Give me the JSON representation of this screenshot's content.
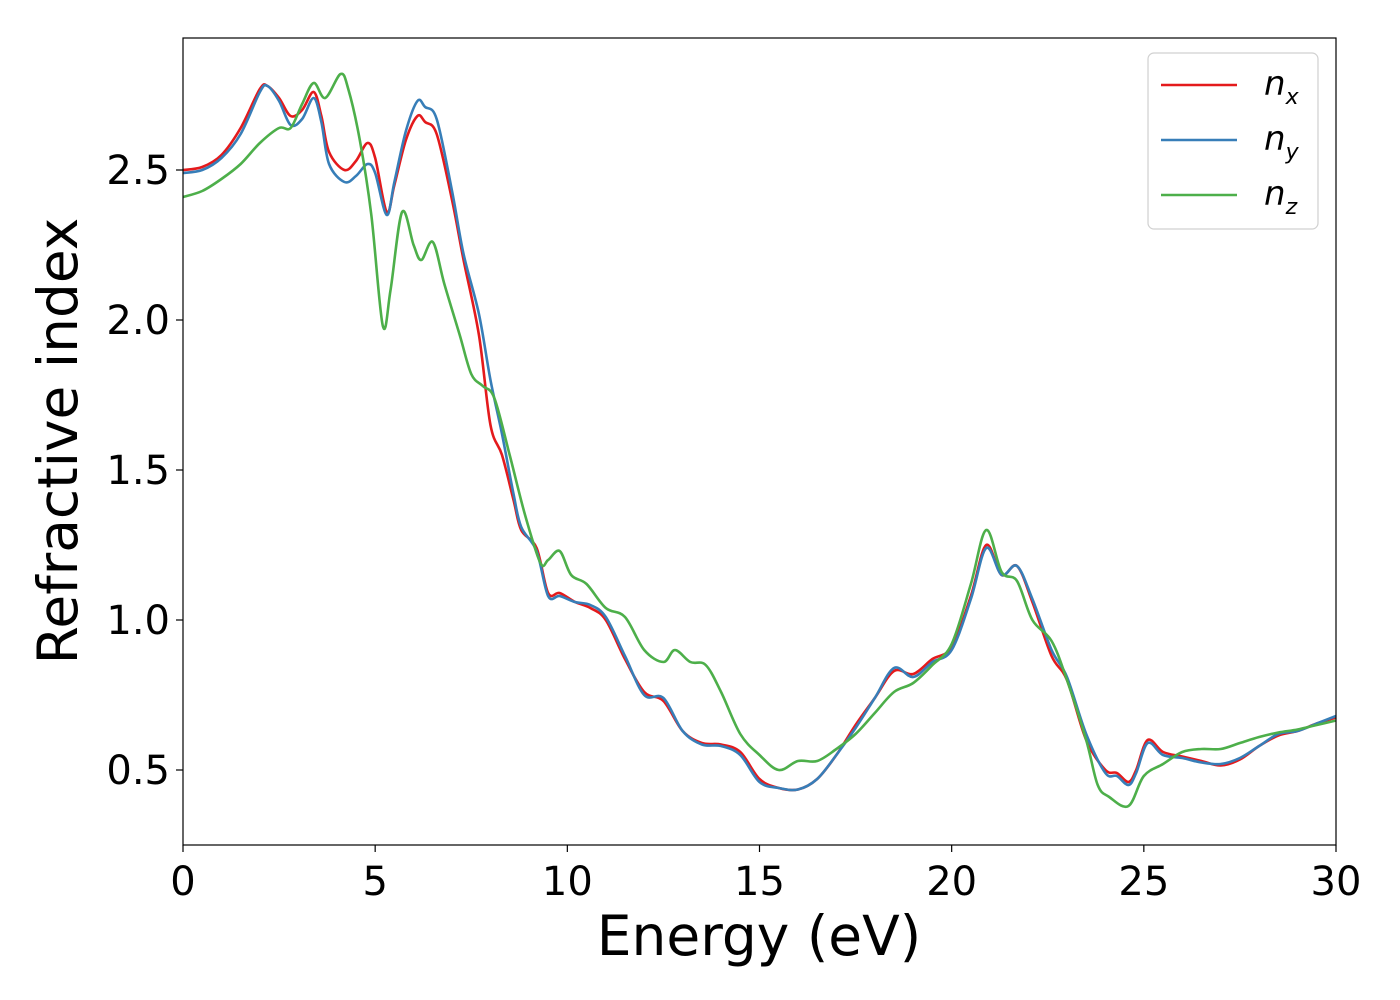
{
  "chart_data": {
    "type": "line",
    "title": "",
    "xlabel": "Energy (eV)",
    "ylabel": "Refractive index",
    "xlim": [
      0,
      30
    ],
    "ylim": [
      0.25,
      2.94
    ],
    "xticks": [
      0,
      5,
      10,
      15,
      20,
      25,
      30
    ],
    "xtick_labels": [
      "0",
      "5",
      "10",
      "15",
      "20",
      "25",
      "30"
    ],
    "yticks": [
      0.5,
      1.0,
      1.5,
      2.0,
      2.5
    ],
    "ytick_labels": [
      "0.5",
      "1.0",
      "1.5",
      "2.0",
      "2.5"
    ],
    "grid": false,
    "legend_position": "top-right",
    "series": [
      {
        "name": "n_x",
        "label_main": "n",
        "label_sub": "x",
        "color": "#e41a1c",
        "points": [
          [
            0,
            2.5
          ],
          [
            0.5,
            2.51
          ],
          [
            1,
            2.55
          ],
          [
            1.5,
            2.64
          ],
          [
            2,
            2.77
          ],
          [
            2.2,
            2.78
          ],
          [
            2.5,
            2.74
          ],
          [
            2.8,
            2.68
          ],
          [
            3.1,
            2.7
          ],
          [
            3.4,
            2.76
          ],
          [
            3.6,
            2.68
          ],
          [
            3.8,
            2.56
          ],
          [
            4.2,
            2.5
          ],
          [
            4.5,
            2.53
          ],
          [
            4.8,
            2.59
          ],
          [
            5,
            2.54
          ],
          [
            5.3,
            2.36
          ],
          [
            5.5,
            2.45
          ],
          [
            5.8,
            2.6
          ],
          [
            6.1,
            2.68
          ],
          [
            6.3,
            2.66
          ],
          [
            6.6,
            2.62
          ],
          [
            7,
            2.4
          ],
          [
            7.3,
            2.2
          ],
          [
            7.7,
            1.95
          ],
          [
            8,
            1.65
          ],
          [
            8.3,
            1.55
          ],
          [
            8.6,
            1.4
          ],
          [
            8.8,
            1.3
          ],
          [
            9.2,
            1.24
          ],
          [
            9.5,
            1.09
          ],
          [
            9.8,
            1.09
          ],
          [
            10.2,
            1.06
          ],
          [
            10.6,
            1.04
          ],
          [
            11,
            1.0
          ],
          [
            11.5,
            0.87
          ],
          [
            12,
            0.76
          ],
          [
            12.5,
            0.73
          ],
          [
            13,
            0.63
          ],
          [
            13.5,
            0.59
          ],
          [
            14,
            0.585
          ],
          [
            14.5,
            0.56
          ],
          [
            15,
            0.47
          ],
          [
            15.5,
            0.44
          ],
          [
            16,
            0.435
          ],
          [
            16.5,
            0.47
          ],
          [
            17,
            0.55
          ],
          [
            17.5,
            0.65
          ],
          [
            18,
            0.74
          ],
          [
            18.5,
            0.83
          ],
          [
            19,
            0.82
          ],
          [
            19.5,
            0.87
          ],
          [
            20,
            0.91
          ],
          [
            20.5,
            1.08
          ],
          [
            20.9,
            1.25
          ],
          [
            21.3,
            1.15
          ],
          [
            21.7,
            1.18
          ],
          [
            22.1,
            1.06
          ],
          [
            22.6,
            0.88
          ],
          [
            23,
            0.8
          ],
          [
            23.5,
            0.6
          ],
          [
            24,
            0.5
          ],
          [
            24.3,
            0.49
          ],
          [
            24.6,
            0.46
          ],
          [
            24.8,
            0.5
          ],
          [
            25.1,
            0.6
          ],
          [
            25.5,
            0.56
          ],
          [
            26,
            0.545
          ],
          [
            26.5,
            0.53
          ],
          [
            27,
            0.515
          ],
          [
            27.5,
            0.535
          ],
          [
            28,
            0.58
          ],
          [
            28.5,
            0.615
          ],
          [
            29,
            0.63
          ],
          [
            29.5,
            0.655
          ],
          [
            30,
            0.675
          ]
        ]
      },
      {
        "name": "n_y",
        "label_main": "n",
        "label_sub": "y",
        "color": "#377eb8",
        "points": [
          [
            0,
            2.49
          ],
          [
            0.5,
            2.5
          ],
          [
            1,
            2.54
          ],
          [
            1.5,
            2.62
          ],
          [
            2,
            2.76
          ],
          [
            2.2,
            2.78
          ],
          [
            2.5,
            2.73
          ],
          [
            2.8,
            2.65
          ],
          [
            3.1,
            2.67
          ],
          [
            3.4,
            2.74
          ],
          [
            3.6,
            2.66
          ],
          [
            3.8,
            2.52
          ],
          [
            4.2,
            2.46
          ],
          [
            4.5,
            2.48
          ],
          [
            4.8,
            2.52
          ],
          [
            5,
            2.49
          ],
          [
            5.3,
            2.35
          ],
          [
            5.5,
            2.46
          ],
          [
            5.8,
            2.63
          ],
          [
            6.1,
            2.73
          ],
          [
            6.3,
            2.71
          ],
          [
            6.6,
            2.67
          ],
          [
            7,
            2.43
          ],
          [
            7.3,
            2.22
          ],
          [
            7.7,
            2.02
          ],
          [
            8,
            1.8
          ],
          [
            8.3,
            1.62
          ],
          [
            8.6,
            1.42
          ],
          [
            8.8,
            1.31
          ],
          [
            9.2,
            1.23
          ],
          [
            9.5,
            1.08
          ],
          [
            9.8,
            1.08
          ],
          [
            10.2,
            1.06
          ],
          [
            10.6,
            1.05
          ],
          [
            11,
            1.01
          ],
          [
            11.5,
            0.88
          ],
          [
            12,
            0.75
          ],
          [
            12.5,
            0.74
          ],
          [
            13,
            0.63
          ],
          [
            13.5,
            0.585
          ],
          [
            14,
            0.58
          ],
          [
            14.5,
            0.55
          ],
          [
            15,
            0.46
          ],
          [
            15.5,
            0.44
          ],
          [
            16,
            0.435
          ],
          [
            16.5,
            0.47
          ],
          [
            17,
            0.55
          ],
          [
            17.5,
            0.64
          ],
          [
            18,
            0.74
          ],
          [
            18.5,
            0.84
          ],
          [
            19,
            0.81
          ],
          [
            19.5,
            0.86
          ],
          [
            20,
            0.9
          ],
          [
            20.5,
            1.07
          ],
          [
            20.9,
            1.24
          ],
          [
            21.3,
            1.15
          ],
          [
            21.7,
            1.18
          ],
          [
            22.1,
            1.07
          ],
          [
            22.6,
            0.9
          ],
          [
            23,
            0.81
          ],
          [
            23.5,
            0.62
          ],
          [
            24,
            0.49
          ],
          [
            24.3,
            0.48
          ],
          [
            24.6,
            0.45
          ],
          [
            24.8,
            0.49
          ],
          [
            25.1,
            0.59
          ],
          [
            25.5,
            0.55
          ],
          [
            26,
            0.54
          ],
          [
            26.5,
            0.525
          ],
          [
            27,
            0.52
          ],
          [
            27.5,
            0.54
          ],
          [
            28,
            0.58
          ],
          [
            28.5,
            0.62
          ],
          [
            29,
            0.63
          ],
          [
            29.5,
            0.655
          ],
          [
            30,
            0.68
          ]
        ]
      },
      {
        "name": "n_z",
        "label_main": "n",
        "label_sub": "z",
        "color": "#4daf4a",
        "points": [
          [
            0,
            2.41
          ],
          [
            0.5,
            2.43
          ],
          [
            1,
            2.47
          ],
          [
            1.5,
            2.52
          ],
          [
            2,
            2.59
          ],
          [
            2.5,
            2.64
          ],
          [
            2.8,
            2.64
          ],
          [
            3.1,
            2.72
          ],
          [
            3.4,
            2.79
          ],
          [
            3.7,
            2.74
          ],
          [
            4.1,
            2.82
          ],
          [
            4.3,
            2.77
          ],
          [
            4.6,
            2.6
          ],
          [
            4.9,
            2.35
          ],
          [
            5.2,
            1.98
          ],
          [
            5.4,
            2.1
          ],
          [
            5.7,
            2.36
          ],
          [
            6,
            2.25
          ],
          [
            6.2,
            2.2
          ],
          [
            6.5,
            2.26
          ],
          [
            6.8,
            2.12
          ],
          [
            7.2,
            1.95
          ],
          [
            7.5,
            1.82
          ],
          [
            7.8,
            1.78
          ],
          [
            8.1,
            1.74
          ],
          [
            8.5,
            1.55
          ],
          [
            8.9,
            1.35
          ],
          [
            9.3,
            1.19
          ],
          [
            9.5,
            1.2
          ],
          [
            9.8,
            1.23
          ],
          [
            10.1,
            1.15
          ],
          [
            10.5,
            1.12
          ],
          [
            11,
            1.04
          ],
          [
            11.5,
            1.01
          ],
          [
            12,
            0.9
          ],
          [
            12.5,
            0.86
          ],
          [
            12.8,
            0.9
          ],
          [
            13.2,
            0.86
          ],
          [
            13.6,
            0.85
          ],
          [
            14,
            0.76
          ],
          [
            14.5,
            0.62
          ],
          [
            15,
            0.55
          ],
          [
            15.5,
            0.5
          ],
          [
            16,
            0.53
          ],
          [
            16.5,
            0.53
          ],
          [
            17,
            0.57
          ],
          [
            17.5,
            0.62
          ],
          [
            18,
            0.69
          ],
          [
            18.5,
            0.76
          ],
          [
            19,
            0.79
          ],
          [
            19.5,
            0.85
          ],
          [
            20,
            0.92
          ],
          [
            20.5,
            1.12
          ],
          [
            20.9,
            1.3
          ],
          [
            21.3,
            1.16
          ],
          [
            21.7,
            1.13
          ],
          [
            22.1,
            1.0
          ],
          [
            22.6,
            0.93
          ],
          [
            23,
            0.8
          ],
          [
            23.5,
            0.6
          ],
          [
            23.8,
            0.45
          ],
          [
            24.1,
            0.41
          ],
          [
            24.6,
            0.38
          ],
          [
            25,
            0.48
          ],
          [
            25.5,
            0.52
          ],
          [
            26,
            0.56
          ],
          [
            26.5,
            0.57
          ],
          [
            27,
            0.57
          ],
          [
            27.5,
            0.59
          ],
          [
            28,
            0.61
          ],
          [
            28.5,
            0.625
          ],
          [
            29,
            0.635
          ],
          [
            29.5,
            0.65
          ],
          [
            30,
            0.665
          ]
        ]
      }
    ]
  }
}
